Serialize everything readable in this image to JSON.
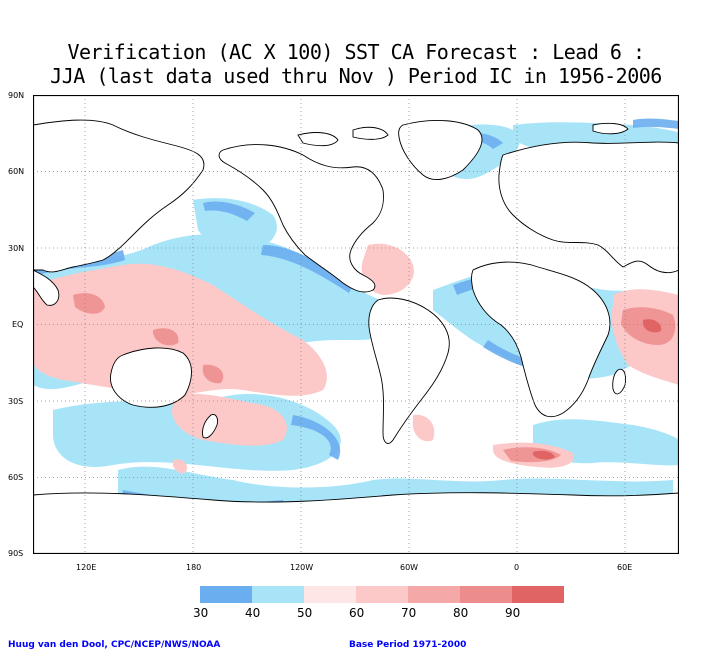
{
  "title": {
    "line1": "Verification (AC X 100) SST CA Forecast : Lead 6 :",
    "line2": "JJA (last data used thru Nov ) Period IC in 1956-2006"
  },
  "map": {
    "lat_labels": [
      "90N",
      "60N",
      "30N",
      "EQ",
      "30S",
      "60S",
      "90S"
    ],
    "lon_labels": [
      "120E",
      "180",
      "120W",
      "60W",
      "0",
      "60E"
    ],
    "grid": "dotted",
    "projection": "cylindrical equidistant, 30E to 90E (wrapped)"
  },
  "legend": {
    "labels": [
      "30",
      "40",
      "50",
      "60",
      "70",
      "80",
      "90"
    ],
    "colors": [
      "#6aaef0",
      "#a8e4f8",
      "#ffe6e6",
      "#fcc8c8",
      "#f4a8a8",
      "#ec8c8c",
      "#e06464"
    ]
  },
  "credits": {
    "left": "Huug van den Dool, CPC/NCEP/NWS/NOAA",
    "right": "Base Period 1971-2000"
  }
}
